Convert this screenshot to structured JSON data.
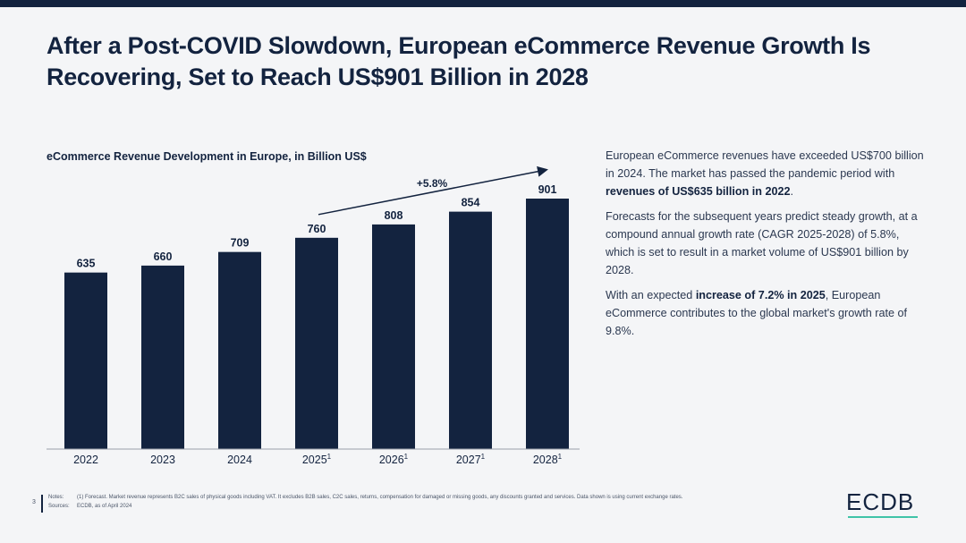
{
  "title": "After a Post-COVID Slowdown, European eCommerce Revenue Growth Is Recovering, Set to Reach US$901 Billion in 2028",
  "colors": {
    "primary": "#13233f",
    "accent": "#3fc4a8"
  },
  "chart_data": {
    "type": "bar",
    "title": "eCommerce Revenue Development in Europe, in Billion US$",
    "xlabel": "",
    "ylabel": "",
    "categories": [
      "2022",
      "2023",
      "2024",
      "2025",
      "2026",
      "2027",
      "2028"
    ],
    "category_superscripts": [
      "",
      "",
      "",
      "1",
      "1",
      "1",
      "1"
    ],
    "values": [
      635,
      660,
      709,
      760,
      808,
      854,
      901
    ],
    "ylim": [
      0,
      901
    ],
    "grid": false,
    "annotations": [
      {
        "text": "+5.8%",
        "type": "arrow",
        "from": "2025",
        "to": "2028"
      }
    ]
  },
  "text_panel": {
    "p1_a": "European eCommerce revenues have exceeded US$700 billion in 2024. The market has passed the pandemic period with ",
    "p1_b": "revenues of US$635 billion in 2022",
    "p1_c": ".",
    "p2": "Forecasts for the subsequent years predict steady growth, at a compound annual growth rate (CAGR 2025-2028) of 5.8%, which is set to result in a market volume of US$901 billion by 2028.",
    "p3_a": "With an expected ",
    "p3_b": "increase of 7.2% in 2025",
    "p3_c": ", European eCommerce contributes to the global market's growth rate of 9.8%."
  },
  "footer": {
    "page_number": "3",
    "notes_label": "Notes:",
    "notes_text": "(1) Forecast. Market revenue represents B2C sales of physical goods including VAT. It excludes B2B sales, C2C sales, returns, compensation for damaged or missing goods, any discounts granted and services. Data shown is using current exchange rates.",
    "sources_label": "Sources:",
    "sources_text": "ECDB, as of April 2024"
  },
  "logo": "ECDB"
}
